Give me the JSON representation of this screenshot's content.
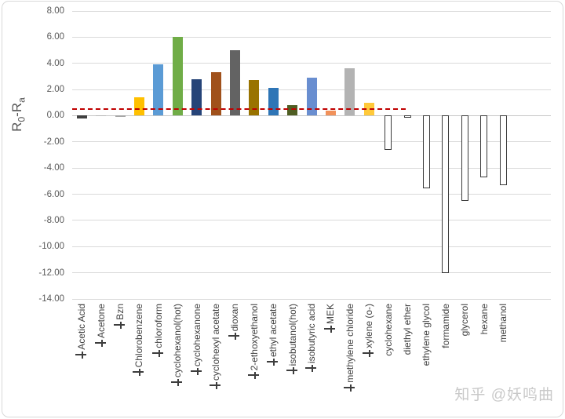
{
  "watermark": "知乎 @妖鸣曲",
  "chart_data": {
    "type": "bar",
    "title": "",
    "ylabel": "R0-Ra",
    "ylabel_parts": {
      "base1": "R",
      "sub1": "0",
      "sep": "-",
      "base2": "R",
      "sub2": "a"
    },
    "ylim": [
      -14,
      8
    ],
    "grid": true,
    "legend": "none",
    "yticks": [
      {
        "label": "8.00",
        "value": 8
      },
      {
        "label": "6.00",
        "value": 6
      },
      {
        "label": "4.00",
        "value": 4
      },
      {
        "label": "2.00",
        "value": 2
      },
      {
        "label": "0.00",
        "value": 0
      },
      {
        "label": "-2.00",
        "value": -2
      },
      {
        "label": "-4.00",
        "value": -4
      },
      {
        "label": "-6.00",
        "value": -6
      },
      {
        "label": "-8.00",
        "value": -8
      },
      {
        "label": "-10.00",
        "value": -10
      },
      {
        "label": "-12.00",
        "value": -12
      },
      {
        "label": "-14.00",
        "value": -14
      }
    ],
    "reference_line": {
      "value": 0.5,
      "style": "dashed",
      "color": "#c00000",
      "start_slot": 0,
      "end_slot": 17.4
    },
    "trailing_empty_slots": 2,
    "categories": [
      {
        "label": "Acetic Acid",
        "value": -0.2,
        "color": "#404040",
        "style": "solid",
        "label_tick_mark": true
      },
      {
        "label": "Acetone",
        "value": -0.05,
        "color": "#b5b5b5",
        "style": "solid",
        "label_tick_mark": true
      },
      {
        "label": "Bzn",
        "value": -0.08,
        "color": "#a6a6a6",
        "style": "solid",
        "label_tick_mark": true
      },
      {
        "label": "Chlorobenzene",
        "value": 1.4,
        "color": "#ffc000",
        "style": "solid",
        "label_tick_mark": true
      },
      {
        "label": "chloroform",
        "value": 3.9,
        "color": "#5b9bd5",
        "style": "solid",
        "label_tick_mark": true
      },
      {
        "label": "cyclohexanol(hot)",
        "value": 6.0,
        "color": "#70ad47",
        "style": "solid",
        "label_tick_mark": true
      },
      {
        "label": "cyclohexanone",
        "value": 2.8,
        "color": "#264478",
        "style": "solid",
        "label_tick_mark": true
      },
      {
        "label": "cyclohexyl acetate",
        "value": 3.3,
        "color": "#a0511b",
        "style": "solid",
        "label_tick_mark": true
      },
      {
        "label": "dioxan",
        "value": 5.0,
        "color": "#636363",
        "style": "solid",
        "label_tick_mark": true
      },
      {
        "label": "2-ethoxyethanol",
        "value": 2.7,
        "color": "#997300",
        "style": "solid",
        "label_tick_mark": true
      },
      {
        "label": "ethyl acetate",
        "value": 2.1,
        "color": "#2e75b6",
        "style": "solid",
        "label_tick_mark": true
      },
      {
        "label": "isobutanol(hot)",
        "value": 0.8,
        "color": "#4f5e23",
        "style": "solid",
        "label_tick_mark": true
      },
      {
        "label": "isobutyric acid",
        "value": 2.9,
        "color": "#698ed0",
        "style": "solid",
        "label_tick_mark": true
      },
      {
        "label": "MEK",
        "value": 0.4,
        "color": "#f1915a",
        "style": "solid",
        "label_tick_mark": true
      },
      {
        "label": "methylene chloride",
        "value": 3.6,
        "color": "#b3b3b3",
        "style": "solid",
        "label_tick_mark": true
      },
      {
        "label": "xylene (o-)",
        "value": 1.0,
        "color": "#ffc93a",
        "style": "solid",
        "label_tick_mark": true
      },
      {
        "label": "cyclohexane",
        "value": -2.6,
        "color": "#ffffff",
        "style": "outline",
        "label_tick_mark": false
      },
      {
        "label": "diethyl ether",
        "value": -0.15,
        "color": "#ffffff",
        "style": "outline",
        "label_tick_mark": false
      },
      {
        "label": "ethylene glycol",
        "value": -5.55,
        "color": "#ffffff",
        "style": "outline",
        "label_tick_mark": false
      },
      {
        "label": "formamide",
        "value": -12.0,
        "color": "#ffffff",
        "style": "outline",
        "label_tick_mark": false
      },
      {
        "label": "glycerol",
        "value": -6.5,
        "color": "#ffffff",
        "style": "outline",
        "label_tick_mark": false
      },
      {
        "label": "hexane",
        "value": -4.7,
        "color": "#ffffff",
        "style": "outline",
        "label_tick_mark": false
      },
      {
        "label": "methanol",
        "value": -5.3,
        "color": "#ffffff",
        "style": "outline",
        "label_tick_mark": false
      }
    ]
  }
}
